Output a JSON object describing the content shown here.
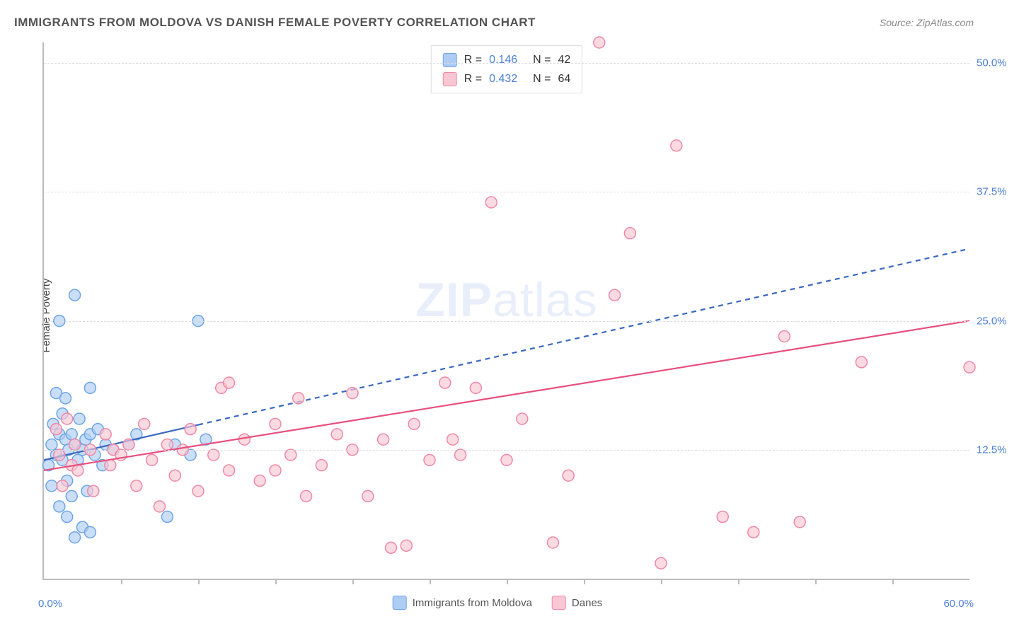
{
  "title": "IMMIGRANTS FROM MOLDOVA VS DANISH FEMALE POVERTY CORRELATION CHART",
  "source": "Source: ZipAtlas.com",
  "ylabel": "Female Poverty",
  "watermark_zip": "ZIP",
  "watermark_atlas": "atlas",
  "xaxis": {
    "min": 0,
    "max": 60,
    "origin_label": "0.0%",
    "end_label": "60.0%",
    "ticks_at": [
      5,
      10,
      15,
      20,
      25,
      30,
      35,
      40,
      45,
      50,
      55
    ]
  },
  "yaxis": {
    "min": 0,
    "max": 52,
    "gridlines": [
      {
        "value": 12.5,
        "label": "12.5%"
      },
      {
        "value": 25.0,
        "label": "25.0%"
      },
      {
        "value": 37.5,
        "label": "37.5%"
      },
      {
        "value": 50.0,
        "label": "50.0%"
      }
    ]
  },
  "series": [
    {
      "name": "Immigrants from Moldova",
      "fill": "#aeccf4",
      "stroke": "#6da5e8",
      "line_color": "#3968c2",
      "line_dash_after_x": 10,
      "R_label": "R =",
      "R": "0.146",
      "N_label": "N =",
      "N": "42",
      "trend": {
        "x1": 0,
        "y1": 11.5,
        "x2": 60,
        "y2": 32.0
      },
      "points": [
        [
          0.3,
          11.0
        ],
        [
          0.5,
          13.0
        ],
        [
          0.5,
          9.0
        ],
        [
          0.6,
          15.0
        ],
        [
          0.8,
          18.0
        ],
        [
          0.8,
          12.0
        ],
        [
          1.0,
          14.0
        ],
        [
          1.0,
          7.0
        ],
        [
          1.0,
          25.0
        ],
        [
          1.2,
          16.0
        ],
        [
          1.2,
          11.5
        ],
        [
          1.4,
          13.5
        ],
        [
          1.4,
          17.5
        ],
        [
          1.5,
          9.5
        ],
        [
          1.5,
          6.0
        ],
        [
          1.6,
          12.5
        ],
        [
          1.8,
          14.0
        ],
        [
          1.8,
          8.0
        ],
        [
          2.0,
          27.5
        ],
        [
          2.0,
          13.0
        ],
        [
          2.0,
          4.0
        ],
        [
          2.2,
          11.5
        ],
        [
          2.3,
          15.5
        ],
        [
          2.5,
          12.5
        ],
        [
          2.5,
          5.0
        ],
        [
          2.7,
          13.5
        ],
        [
          2.8,
          8.5
        ],
        [
          3.0,
          14.0
        ],
        [
          3.0,
          18.5
        ],
        [
          3.0,
          4.5
        ],
        [
          3.3,
          12.0
        ],
        [
          3.5,
          14.5
        ],
        [
          3.8,
          11.0
        ],
        [
          4.0,
          13.0
        ],
        [
          4.5,
          12.5
        ],
        [
          5.5,
          13.0
        ],
        [
          6.0,
          14.0
        ],
        [
          8.0,
          6.0
        ],
        [
          8.5,
          13.0
        ],
        [
          9.5,
          12.0
        ],
        [
          10.0,
          25.0
        ],
        [
          10.5,
          13.5
        ]
      ]
    },
    {
      "name": "Danes",
      "fill": "#f9c6d3",
      "stroke": "#ef89a5",
      "line_color": "#e84f7d",
      "line_dash_after_x": 999,
      "R_label": "R =",
      "R": "0.432",
      "N_label": "N =",
      "N": "64",
      "trend": {
        "x1": 0,
        "y1": 10.5,
        "x2": 60,
        "y2": 25.0
      },
      "points": [
        [
          0.8,
          14.5
        ],
        [
          1.0,
          12.0
        ],
        [
          1.2,
          9.0
        ],
        [
          1.5,
          15.5
        ],
        [
          1.8,
          11.0
        ],
        [
          2.0,
          13.0
        ],
        [
          2.2,
          10.5
        ],
        [
          3.0,
          12.5
        ],
        [
          3.2,
          8.5
        ],
        [
          4.0,
          14.0
        ],
        [
          4.3,
          11.0
        ],
        [
          4.5,
          12.5
        ],
        [
          5.0,
          12.0
        ],
        [
          5.5,
          13.0
        ],
        [
          6.0,
          9.0
        ],
        [
          6.5,
          15.0
        ],
        [
          7.0,
          11.5
        ],
        [
          7.5,
          7.0
        ],
        [
          8.0,
          13.0
        ],
        [
          8.5,
          10.0
        ],
        [
          9.0,
          12.5
        ],
        [
          9.5,
          14.5
        ],
        [
          10.0,
          8.5
        ],
        [
          11.0,
          12.0
        ],
        [
          11.5,
          18.5
        ],
        [
          12.0,
          10.5
        ],
        [
          12.0,
          19.0
        ],
        [
          13.0,
          13.5
        ],
        [
          14.0,
          9.5
        ],
        [
          15.0,
          15.0
        ],
        [
          15.0,
          10.5
        ],
        [
          16.0,
          12.0
        ],
        [
          16.5,
          17.5
        ],
        [
          17.0,
          8.0
        ],
        [
          18.0,
          11.0
        ],
        [
          19.0,
          14.0
        ],
        [
          20.0,
          12.5
        ],
        [
          20.0,
          18.0
        ],
        [
          21.0,
          8.0
        ],
        [
          22.0,
          13.5
        ],
        [
          22.5,
          3.0
        ],
        [
          23.5,
          3.2
        ],
        [
          24.0,
          15.0
        ],
        [
          25.0,
          11.5
        ],
        [
          26.0,
          19.0
        ],
        [
          26.5,
          13.5
        ],
        [
          27.0,
          12.0
        ],
        [
          28.0,
          18.5
        ],
        [
          29.0,
          36.5
        ],
        [
          30.0,
          11.5
        ],
        [
          31.0,
          15.5
        ],
        [
          33.0,
          3.5
        ],
        [
          34.0,
          10.0
        ],
        [
          36.0,
          52.0
        ],
        [
          37.0,
          27.5
        ],
        [
          38.0,
          33.5
        ],
        [
          40.0,
          1.5
        ],
        [
          41.0,
          42.0
        ],
        [
          44.0,
          6.0
        ],
        [
          46.0,
          4.5
        ],
        [
          48.0,
          23.5
        ],
        [
          49.0,
          5.5
        ],
        [
          53.0,
          21.0
        ],
        [
          60.0,
          20.5
        ]
      ]
    }
  ],
  "marker_radius": 8,
  "marker_stroke_width": 1.5,
  "trend_width": 2.2,
  "legend_swatch_border": "#aaa"
}
